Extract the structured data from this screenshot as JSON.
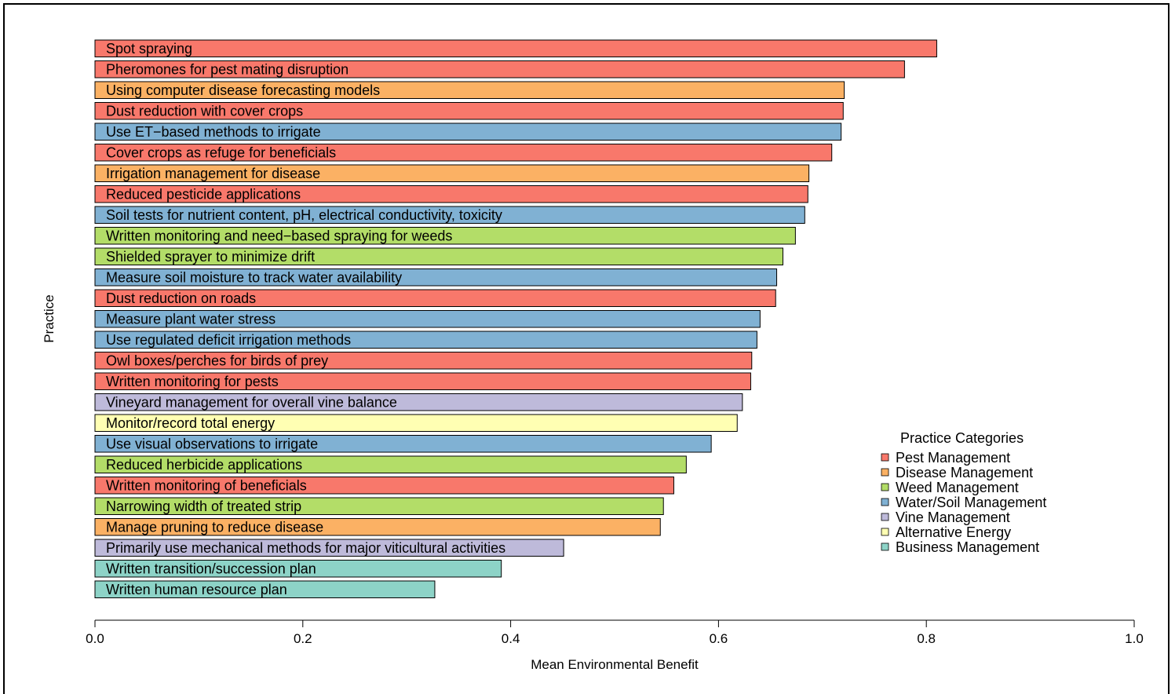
{
  "chart_data": {
    "type": "bar",
    "orientation": "horizontal",
    "xlabel": "Mean Environmental Benefit",
    "ylabel": "Practice",
    "xlim": [
      0,
      1.0
    ],
    "x_ticks": [
      "0.0",
      "0.2",
      "0.4",
      "0.6",
      "0.8",
      "1.0"
    ],
    "grid": false,
    "legend": {
      "title": "Practice Categories",
      "placement": "right",
      "entries": [
        {
          "key": "pest",
          "label": "Pest Management",
          "color": "#f8786b"
        },
        {
          "key": "disease",
          "label": "Disease Management",
          "color": "#fbb164"
        },
        {
          "key": "weed",
          "label": "Weed Management",
          "color": "#b3dd68"
        },
        {
          "key": "water",
          "label": "Water/Soil Management",
          "color": "#80b1d3"
        },
        {
          "key": "vine",
          "label": "Vine Management",
          "color": "#bebada"
        },
        {
          "key": "energy",
          "label": "Alternative Energy",
          "color": "#ffffb3"
        },
        {
          "key": "business",
          "label": "Business Management",
          "color": "#8dd3c7"
        }
      ]
    },
    "bars": [
      {
        "label": "Spot spraying",
        "value": 0.81,
        "category": "pest"
      },
      {
        "label": "Pheromones for pest mating disruption",
        "value": 0.779,
        "category": "pest"
      },
      {
        "label": "Using computer disease forecasting models",
        "value": 0.721,
        "category": "disease"
      },
      {
        "label": "Dust reduction with cover crops",
        "value": 0.72,
        "category": "pest"
      },
      {
        "label": "Use ET−based methods to irrigate",
        "value": 0.718,
        "category": "water"
      },
      {
        "label": "Cover crops as refuge for beneficials",
        "value": 0.709,
        "category": "pest"
      },
      {
        "label": "Irrigation management for disease",
        "value": 0.687,
        "category": "disease"
      },
      {
        "label": "Reduced pesticide applications",
        "value": 0.686,
        "category": "pest"
      },
      {
        "label": "Soil tests for nutrient content, pH, electrical conductivity, toxicity",
        "value": 0.683,
        "category": "water"
      },
      {
        "label": "Written monitoring and need−based spraying for weeds",
        "value": 0.674,
        "category": "weed"
      },
      {
        "label": "Shielded sprayer to minimize drift",
        "value": 0.662,
        "category": "weed"
      },
      {
        "label": "Measure soil moisture to track water availability",
        "value": 0.656,
        "category": "water"
      },
      {
        "label": "Dust reduction on roads",
        "value": 0.655,
        "category": "pest"
      },
      {
        "label": "Measure plant water stress",
        "value": 0.64,
        "category": "water"
      },
      {
        "label": "Use regulated deficit irrigation methods",
        "value": 0.637,
        "category": "water"
      },
      {
        "label": "Owl boxes/perches for birds of prey",
        "value": 0.632,
        "category": "pest"
      },
      {
        "label": "Written monitoring for pests",
        "value": 0.631,
        "category": "pest"
      },
      {
        "label": "Vineyard management for overall vine balance",
        "value": 0.623,
        "category": "vine"
      },
      {
        "label": "Monitor/record total energy",
        "value": 0.618,
        "category": "energy"
      },
      {
        "label": "Use visual observations to irrigate",
        "value": 0.593,
        "category": "water"
      },
      {
        "label": "Reduced herbicide applications",
        "value": 0.569,
        "category": "weed"
      },
      {
        "label": "Written monitoring of beneficials",
        "value": 0.557,
        "category": "pest"
      },
      {
        "label": "Narrowing width of treated strip",
        "value": 0.547,
        "category": "weed"
      },
      {
        "label": "Manage pruning to reduce disease",
        "value": 0.544,
        "category": "disease"
      },
      {
        "label": "Primarily use mechanical methods for major viticultural activities",
        "value": 0.451,
        "category": "vine"
      },
      {
        "label": "Written transition/succession plan",
        "value": 0.391,
        "category": "business"
      },
      {
        "label": "Written human resource plan",
        "value": 0.327,
        "category": "business"
      }
    ]
  }
}
